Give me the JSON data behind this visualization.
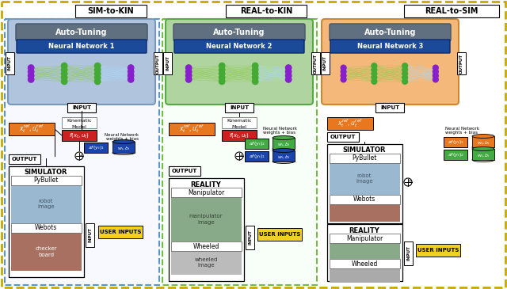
{
  "bg_color": "#ffffff",
  "outer_border_color": "#c8a800",
  "sim_to_kin_border": "#5599cc",
  "real_to_kin_border": "#77bb44",
  "nn1_bg": "#b0c4de",
  "nn2_bg": "#b0d4a0",
  "nn3_bg": "#f4b87a",
  "autotuning_header": "#607080",
  "nn_label_bg": "#1a4a99",
  "orange_box": "#e87820",
  "red_box": "#cc2020",
  "green_box": "#44aa44",
  "blue_box_dark": "#1a44aa",
  "blue_box_light": "#4488dd",
  "yellow_box": "#f0d020",
  "sim_label": "SIM-to-KIN",
  "real_kin_label": "REAL-to-KIN",
  "real_sim_label": "REAL-to-SIM",
  "nn1_label": "Neural Network 1",
  "nn2_label": "Neural Network 2",
  "nn3_label": "Neural Network 3",
  "autotuning_text": "Auto-Tuning",
  "input_text": "INPUT",
  "output_text": "OUTPUT"
}
